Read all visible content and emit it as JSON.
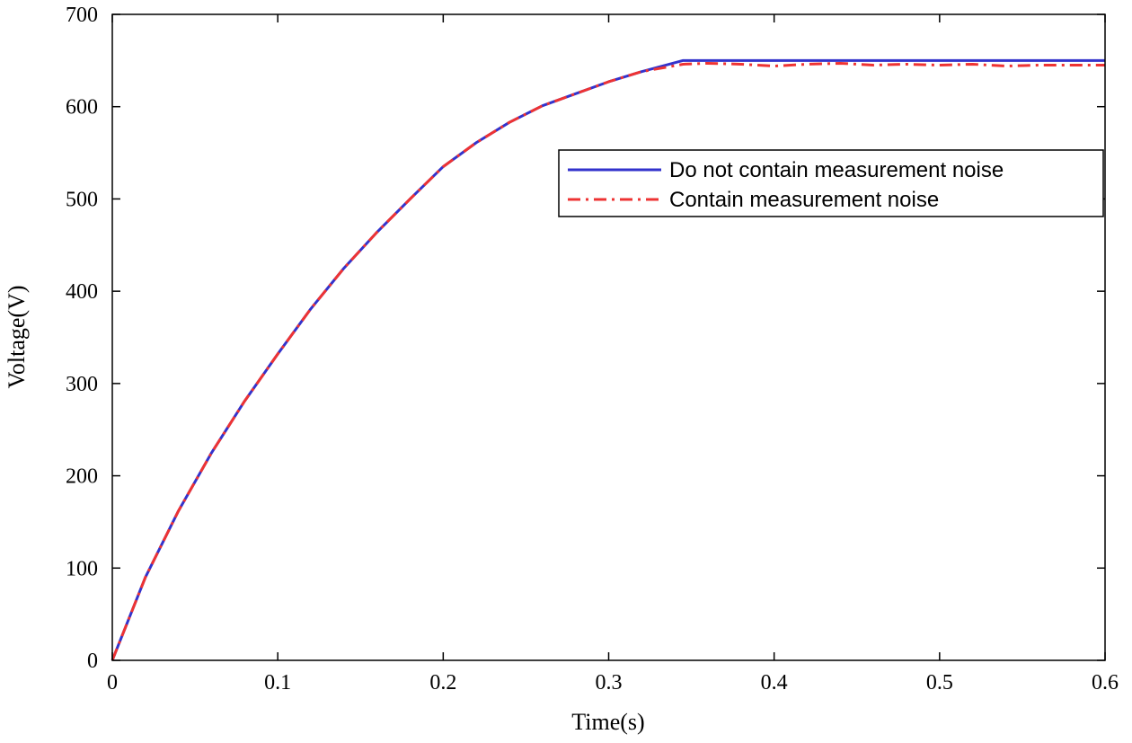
{
  "chart_data": {
    "type": "line",
    "title": "",
    "xlabel": "Time(s)",
    "ylabel": "Voltage(V)",
    "xlim": [
      0,
      0.6
    ],
    "ylim": [
      0,
      700
    ],
    "xticks": [
      0,
      0.1,
      0.2,
      0.3,
      0.4,
      0.5,
      0.6
    ],
    "xtick_labels": [
      "0",
      "0.1",
      "0.2",
      "0.3",
      "0.4",
      "0.5",
      "0.6"
    ],
    "yticks": [
      0,
      100,
      200,
      300,
      400,
      500,
      600,
      700
    ],
    "ytick_labels": [
      "0",
      "100",
      "200",
      "300",
      "400",
      "500",
      "600",
      "700"
    ],
    "grid": false,
    "legend_position": "upper-right",
    "series": [
      {
        "name": "Do not contain measurement noise",
        "color": "#3333cc",
        "style": "solid",
        "x": [
          0,
          0.02,
          0.04,
          0.06,
          0.08,
          0.1,
          0.12,
          0.14,
          0.16,
          0.18,
          0.2,
          0.22,
          0.24,
          0.26,
          0.28,
          0.3,
          0.32,
          0.345,
          0.4,
          0.45,
          0.5,
          0.55,
          0.6
        ],
        "y": [
          0,
          90,
          162,
          225,
          281,
          332,
          381,
          425,
          464,
          500,
          535,
          561,
          583,
          601,
          614,
          627,
          638,
          650,
          650,
          650,
          650,
          650,
          650
        ]
      },
      {
        "name": "Contain measurement noise",
        "color": "#ee3333",
        "style": "dashdot",
        "x": [
          0,
          0.02,
          0.04,
          0.06,
          0.08,
          0.1,
          0.12,
          0.14,
          0.16,
          0.18,
          0.2,
          0.22,
          0.24,
          0.26,
          0.28,
          0.3,
          0.32,
          0.345,
          0.36,
          0.38,
          0.4,
          0.42,
          0.44,
          0.46,
          0.48,
          0.5,
          0.52,
          0.54,
          0.56,
          0.58,
          0.6
        ],
        "y": [
          0,
          90,
          162,
          225,
          281,
          332,
          381,
          425,
          464,
          500,
          535,
          561,
          583,
          601,
          614,
          627,
          638,
          646,
          647,
          646,
          644,
          646,
          647,
          645,
          646,
          645,
          646,
          644,
          645,
          645,
          645
        ]
      }
    ]
  }
}
